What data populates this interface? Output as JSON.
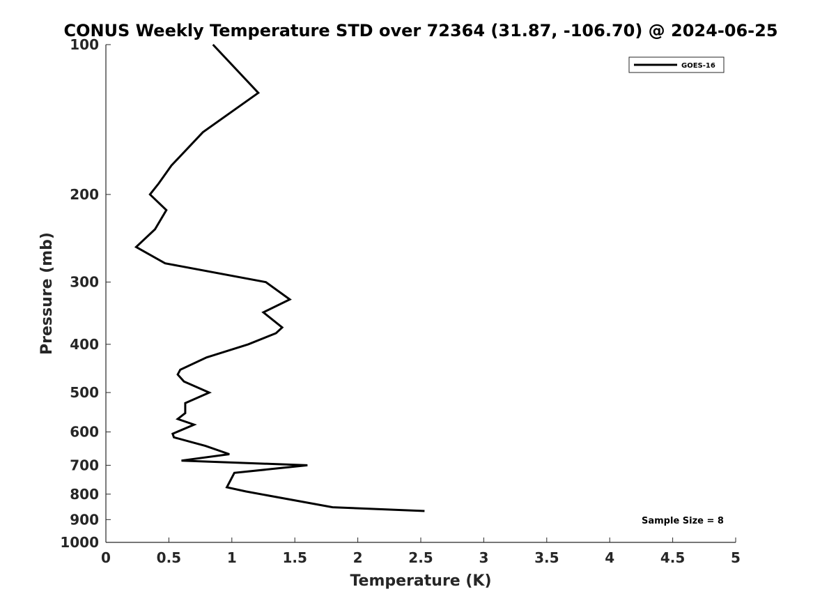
{
  "chart_data": {
    "type": "line",
    "title": "CONUS Weekly Temperature STD over 72364 (31.87, -106.70) @ 2024-06-25",
    "xlabel": "Temperature (K)",
    "ylabel": "Pressure (mb)",
    "xlim": [
      0,
      5
    ],
    "ylim": [
      1000,
      100
    ],
    "yscale": "log",
    "y_reversed": true,
    "xticks": [
      0,
      0.5,
      1,
      1.5,
      2,
      2.5,
      3,
      3.5,
      4,
      4.5,
      5
    ],
    "xtick_labels": [
      "0",
      "0.5",
      "1",
      "1.5",
      "2",
      "2.5",
      "3",
      "3.5",
      "4",
      "4.5",
      "5"
    ],
    "yticks": [
      100,
      200,
      300,
      400,
      500,
      600,
      700,
      800,
      900,
      1000
    ],
    "ytick_labels": [
      "100",
      "200",
      "300",
      "400",
      "500",
      "600",
      "700",
      "800",
      "900",
      "1000"
    ],
    "grid": false,
    "legend_position": "top-right",
    "series": [
      {
        "name": "GOES-16",
        "color": "#000000",
        "points": [
          {
            "x": 0.85,
            "y": 100
          },
          {
            "x": 1.21,
            "y": 125
          },
          {
            "x": 0.77,
            "y": 150
          },
          {
            "x": 0.52,
            "y": 175
          },
          {
            "x": 0.42,
            "y": 190
          },
          {
            "x": 0.35,
            "y": 200
          },
          {
            "x": 0.48,
            "y": 215
          },
          {
            "x": 0.39,
            "y": 235
          },
          {
            "x": 0.24,
            "y": 255
          },
          {
            "x": 0.47,
            "y": 275
          },
          {
            "x": 1.27,
            "y": 300
          },
          {
            "x": 1.46,
            "y": 325
          },
          {
            "x": 1.25,
            "y": 345
          },
          {
            "x": 1.4,
            "y": 370
          },
          {
            "x": 1.35,
            "y": 380
          },
          {
            "x": 1.13,
            "y": 400
          },
          {
            "x": 0.8,
            "y": 425
          },
          {
            "x": 0.59,
            "y": 450
          },
          {
            "x": 0.57,
            "y": 460
          },
          {
            "x": 0.62,
            "y": 475
          },
          {
            "x": 0.82,
            "y": 500
          },
          {
            "x": 0.63,
            "y": 525
          },
          {
            "x": 0.63,
            "y": 550
          },
          {
            "x": 0.57,
            "y": 565
          },
          {
            "x": 0.7,
            "y": 580
          },
          {
            "x": 0.53,
            "y": 605
          },
          {
            "x": 0.54,
            "y": 615
          },
          {
            "x": 0.79,
            "y": 640
          },
          {
            "x": 0.98,
            "y": 665
          },
          {
            "x": 0.6,
            "y": 685
          },
          {
            "x": 1.6,
            "y": 700
          },
          {
            "x": 1.02,
            "y": 725
          },
          {
            "x": 0.96,
            "y": 775
          },
          {
            "x": 1.11,
            "y": 790
          },
          {
            "x": 1.8,
            "y": 850
          },
          {
            "x": 2.53,
            "y": 865
          }
        ]
      }
    ],
    "annotation": "Sample Size = 8"
  }
}
